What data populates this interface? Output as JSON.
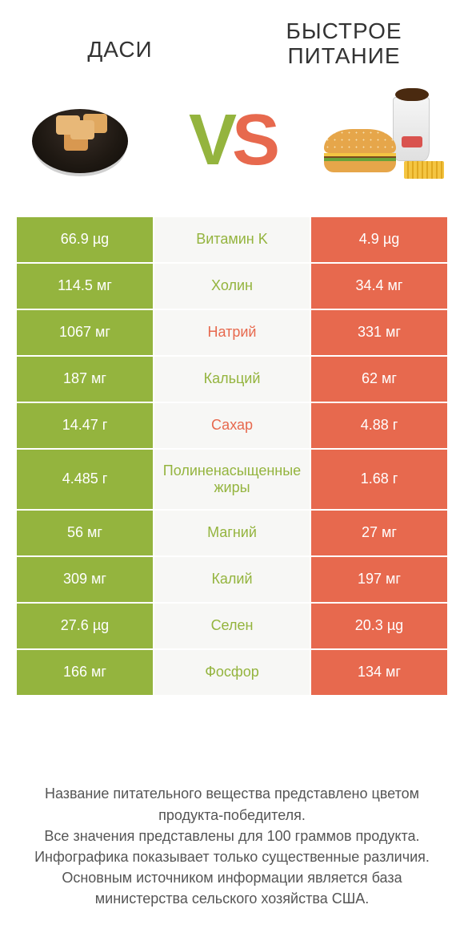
{
  "colors": {
    "green": "#94b43e",
    "orange": "#e7694e",
    "background": "#ffffff",
    "row_divider": "#ffffff",
    "middle_bg": "#f7f7f5",
    "footer_text": "#555555"
  },
  "typography": {
    "header_fontsize": 28,
    "vs_fontsize": 90,
    "cell_fontsize": 18,
    "footer_fontsize": 18
  },
  "header": {
    "left": "ДАСИ",
    "right_line1": "БЫСТРОЕ",
    "right_line2": "ПИТАНИЕ"
  },
  "vs": {
    "v": "V",
    "s": "S"
  },
  "rows": [
    {
      "left": "66.9 µg",
      "label": "Витамин K",
      "right": "4.9 µg",
      "winner": "left"
    },
    {
      "left": "114.5 мг",
      "label": "Холин",
      "right": "34.4 мг",
      "winner": "left"
    },
    {
      "left": "1067 мг",
      "label": "Натрий",
      "right": "331 мг",
      "winner": "right"
    },
    {
      "left": "187 мг",
      "label": "Кальций",
      "right": "62 мг",
      "winner": "left"
    },
    {
      "left": "14.47 г",
      "label": "Сахар",
      "right": "4.88 г",
      "winner": "right"
    },
    {
      "left": "4.485 г",
      "label": "Полиненасыщенные жиры",
      "right": "1.68 г",
      "winner": "left",
      "tall": true
    },
    {
      "left": "56 мг",
      "label": "Магний",
      "right": "27 мг",
      "winner": "left"
    },
    {
      "left": "309 мг",
      "label": "Калий",
      "right": "197 мг",
      "winner": "left"
    },
    {
      "left": "27.6 µg",
      "label": "Селен",
      "right": "20.3 µg",
      "winner": "left"
    },
    {
      "left": "166 мг",
      "label": "Фосфор",
      "right": "134 мг",
      "winner": "left"
    }
  ],
  "footer": {
    "l1": "Название питательного вещества представлено цветом продукта-победителя.",
    "l2": "Все значения представлены для 100 граммов продукта.",
    "l3": "Инфографика показывает только существенные различия.",
    "l4": "Основным источником информации является база министерства сельского хозяйства США."
  }
}
